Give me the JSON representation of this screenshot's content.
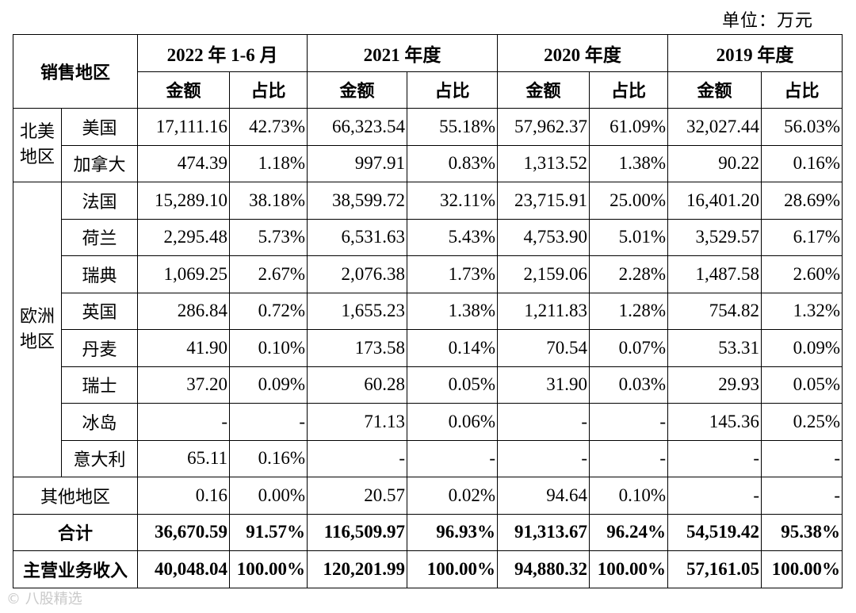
{
  "unit_label": "单位：万元",
  "header": {
    "region_label": "销售地区",
    "periods": [
      "2022 年 1-6 月",
      "2021 年度",
      "2020 年度",
      "2019 年度"
    ],
    "amount_label": "金额",
    "ratio_label": "占比"
  },
  "groups": {
    "north_america": "北美地区",
    "europe": "欧洲地区"
  },
  "rows": [
    {
      "country": "美国",
      "values": [
        "17,111.16",
        "42.73%",
        "66,323.54",
        "55.18%",
        "57,962.37",
        "61.09%",
        "32,027.44",
        "56.03%"
      ]
    },
    {
      "country": "加拿大",
      "values": [
        "474.39",
        "1.18%",
        "997.91",
        "0.83%",
        "1,313.52",
        "1.38%",
        "90.22",
        "0.16%"
      ]
    },
    {
      "country": "法国",
      "values": [
        "15,289.10",
        "38.18%",
        "38,599.72",
        "32.11%",
        "23,715.91",
        "25.00%",
        "16,401.20",
        "28.69%"
      ]
    },
    {
      "country": "荷兰",
      "values": [
        "2,295.48",
        "5.73%",
        "6,531.63",
        "5.43%",
        "4,753.90",
        "5.01%",
        "3,529.57",
        "6.17%"
      ]
    },
    {
      "country": "瑞典",
      "values": [
        "1,069.25",
        "2.67%",
        "2,076.38",
        "1.73%",
        "2,159.06",
        "2.28%",
        "1,487.58",
        "2.60%"
      ]
    },
    {
      "country": "英国",
      "values": [
        "286.84",
        "0.72%",
        "1,655.23",
        "1.38%",
        "1,211.83",
        "1.28%",
        "754.82",
        "1.32%"
      ]
    },
    {
      "country": "丹麦",
      "values": [
        "41.90",
        "0.10%",
        "173.58",
        "0.14%",
        "70.54",
        "0.07%",
        "53.31",
        "0.09%"
      ]
    },
    {
      "country": "瑞士",
      "values": [
        "37.20",
        "0.09%",
        "60.28",
        "0.05%",
        "31.90",
        "0.03%",
        "29.93",
        "0.05%"
      ]
    },
    {
      "country": "冰岛",
      "values": [
        "-",
        "-",
        "71.13",
        "0.06%",
        "-",
        "-",
        "145.36",
        "0.25%"
      ]
    },
    {
      "country": "意大利",
      "values": [
        "65.11",
        "0.16%",
        "-",
        "-",
        "-",
        "-",
        "-",
        "-"
      ]
    }
  ],
  "other_row": {
    "label": "其他地区",
    "values": [
      "0.16",
      "0.00%",
      "20.57",
      "0.02%",
      "94.64",
      "0.10%",
      "-",
      "-"
    ]
  },
  "total_row": {
    "label": "合计",
    "values": [
      "36,670.59",
      "91.57%",
      "116,509.97",
      "96.93%",
      "91,313.67",
      "96.24%",
      "54,519.42",
      "95.38%"
    ]
  },
  "revenue_row": {
    "label": "主营业务收入",
    "values": [
      "40,048.04",
      "100.00%",
      "120,201.99",
      "100.00%",
      "94,880.32",
      "100.00%",
      "57,161.05",
      "100.00%"
    ]
  },
  "watermark": "© 八股精选"
}
